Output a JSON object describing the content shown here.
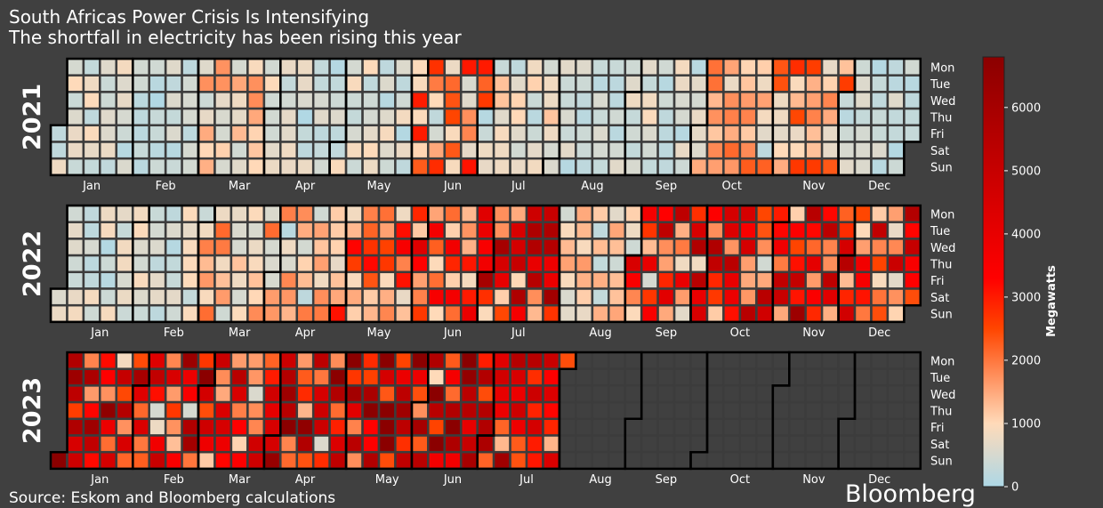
{
  "title": "South Africas Power Crisis Is Intensifying",
  "subtitle": "The shortfall in electricity has been rising this year",
  "source": "Source: Eskom and Bloomberg calculations",
  "brand": "Bloomberg",
  "chart_data": {
    "type": "heatmap",
    "subtype": "calendar",
    "years": [
      "2021",
      "2022",
      "2023"
    ],
    "weekdays": [
      "Mon",
      "Tue",
      "Wed",
      "Thu",
      "Fri",
      "Sat",
      "Sun"
    ],
    "months": [
      "Jan",
      "Feb",
      "Mar",
      "Apr",
      "May",
      "Jun",
      "Jul",
      "Aug",
      "Sep",
      "Oct",
      "Nov",
      "Dec"
    ],
    "colorbar": {
      "label": "Megawatts",
      "min": 0,
      "max": 6800,
      "ticks": [
        0,
        1000,
        2000,
        3000,
        4000,
        5000,
        6000
      ]
    },
    "data_end_2023": "2023-07-31",
    "monthly_shortfall_mw": {
      "2021": [
        600,
        400,
        1100,
        500,
        600,
        1900,
        800,
        400,
        600,
        1500,
        1700,
        400
      ],
      "2022": [
        550,
        600,
        1300,
        1200,
        2200,
        2600,
        3800,
        1000,
        3600,
        3700,
        3800,
        3400
      ],
      "2023": [
        4300,
        4400,
        3300,
        4600,
        5000,
        4300,
        3800
      ]
    },
    "colors": [
      "#add8e6",
      "#ffdab9",
      "#ff4500",
      "#ff0000",
      "#8b0000"
    ],
    "cell_edge_color": "#3c3c3c",
    "background": "#404040"
  }
}
